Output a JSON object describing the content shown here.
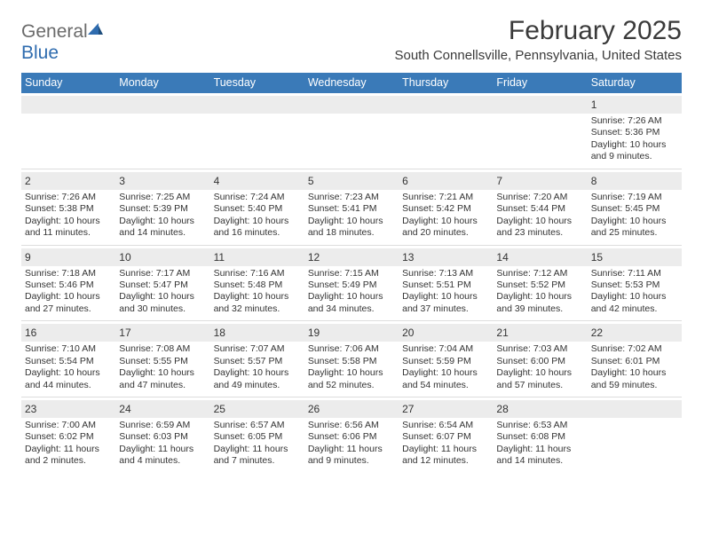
{
  "logo": {
    "word1": "General",
    "word2": "Blue"
  },
  "title": "February 2025",
  "location": "South Connellsville, Pennsylvania, United States",
  "colors": {
    "header_bg": "#3a7ab8",
    "header_text": "#ffffff",
    "daynum_bg": "#ececec",
    "divider": "#dddddd",
    "logo_gray": "#6a6a6a",
    "logo_blue": "#2f6caf"
  },
  "weekdays": [
    "Sunday",
    "Monday",
    "Tuesday",
    "Wednesday",
    "Thursday",
    "Friday",
    "Saturday"
  ],
  "weeks": [
    [
      {
        "blank": true
      },
      {
        "blank": true
      },
      {
        "blank": true
      },
      {
        "blank": true
      },
      {
        "blank": true
      },
      {
        "blank": true
      },
      {
        "n": "1",
        "sunrise": "Sunrise: 7:26 AM",
        "sunset": "Sunset: 5:36 PM",
        "daylight1": "Daylight: 10 hours",
        "daylight2": "and 9 minutes."
      }
    ],
    [
      {
        "n": "2",
        "sunrise": "Sunrise: 7:26 AM",
        "sunset": "Sunset: 5:38 PM",
        "daylight1": "Daylight: 10 hours",
        "daylight2": "and 11 minutes."
      },
      {
        "n": "3",
        "sunrise": "Sunrise: 7:25 AM",
        "sunset": "Sunset: 5:39 PM",
        "daylight1": "Daylight: 10 hours",
        "daylight2": "and 14 minutes."
      },
      {
        "n": "4",
        "sunrise": "Sunrise: 7:24 AM",
        "sunset": "Sunset: 5:40 PM",
        "daylight1": "Daylight: 10 hours",
        "daylight2": "and 16 minutes."
      },
      {
        "n": "5",
        "sunrise": "Sunrise: 7:23 AM",
        "sunset": "Sunset: 5:41 PM",
        "daylight1": "Daylight: 10 hours",
        "daylight2": "and 18 minutes."
      },
      {
        "n": "6",
        "sunrise": "Sunrise: 7:21 AM",
        "sunset": "Sunset: 5:42 PM",
        "daylight1": "Daylight: 10 hours",
        "daylight2": "and 20 minutes."
      },
      {
        "n": "7",
        "sunrise": "Sunrise: 7:20 AM",
        "sunset": "Sunset: 5:44 PM",
        "daylight1": "Daylight: 10 hours",
        "daylight2": "and 23 minutes."
      },
      {
        "n": "8",
        "sunrise": "Sunrise: 7:19 AM",
        "sunset": "Sunset: 5:45 PM",
        "daylight1": "Daylight: 10 hours",
        "daylight2": "and 25 minutes."
      }
    ],
    [
      {
        "n": "9",
        "sunrise": "Sunrise: 7:18 AM",
        "sunset": "Sunset: 5:46 PM",
        "daylight1": "Daylight: 10 hours",
        "daylight2": "and 27 minutes."
      },
      {
        "n": "10",
        "sunrise": "Sunrise: 7:17 AM",
        "sunset": "Sunset: 5:47 PM",
        "daylight1": "Daylight: 10 hours",
        "daylight2": "and 30 minutes."
      },
      {
        "n": "11",
        "sunrise": "Sunrise: 7:16 AM",
        "sunset": "Sunset: 5:48 PM",
        "daylight1": "Daylight: 10 hours",
        "daylight2": "and 32 minutes."
      },
      {
        "n": "12",
        "sunrise": "Sunrise: 7:15 AM",
        "sunset": "Sunset: 5:49 PM",
        "daylight1": "Daylight: 10 hours",
        "daylight2": "and 34 minutes."
      },
      {
        "n": "13",
        "sunrise": "Sunrise: 7:13 AM",
        "sunset": "Sunset: 5:51 PM",
        "daylight1": "Daylight: 10 hours",
        "daylight2": "and 37 minutes."
      },
      {
        "n": "14",
        "sunrise": "Sunrise: 7:12 AM",
        "sunset": "Sunset: 5:52 PM",
        "daylight1": "Daylight: 10 hours",
        "daylight2": "and 39 minutes."
      },
      {
        "n": "15",
        "sunrise": "Sunrise: 7:11 AM",
        "sunset": "Sunset: 5:53 PM",
        "daylight1": "Daylight: 10 hours",
        "daylight2": "and 42 minutes."
      }
    ],
    [
      {
        "n": "16",
        "sunrise": "Sunrise: 7:10 AM",
        "sunset": "Sunset: 5:54 PM",
        "daylight1": "Daylight: 10 hours",
        "daylight2": "and 44 minutes."
      },
      {
        "n": "17",
        "sunrise": "Sunrise: 7:08 AM",
        "sunset": "Sunset: 5:55 PM",
        "daylight1": "Daylight: 10 hours",
        "daylight2": "and 47 minutes."
      },
      {
        "n": "18",
        "sunrise": "Sunrise: 7:07 AM",
        "sunset": "Sunset: 5:57 PM",
        "daylight1": "Daylight: 10 hours",
        "daylight2": "and 49 minutes."
      },
      {
        "n": "19",
        "sunrise": "Sunrise: 7:06 AM",
        "sunset": "Sunset: 5:58 PM",
        "daylight1": "Daylight: 10 hours",
        "daylight2": "and 52 minutes."
      },
      {
        "n": "20",
        "sunrise": "Sunrise: 7:04 AM",
        "sunset": "Sunset: 5:59 PM",
        "daylight1": "Daylight: 10 hours",
        "daylight2": "and 54 minutes."
      },
      {
        "n": "21",
        "sunrise": "Sunrise: 7:03 AM",
        "sunset": "Sunset: 6:00 PM",
        "daylight1": "Daylight: 10 hours",
        "daylight2": "and 57 minutes."
      },
      {
        "n": "22",
        "sunrise": "Sunrise: 7:02 AM",
        "sunset": "Sunset: 6:01 PM",
        "daylight1": "Daylight: 10 hours",
        "daylight2": "and 59 minutes."
      }
    ],
    [
      {
        "n": "23",
        "sunrise": "Sunrise: 7:00 AM",
        "sunset": "Sunset: 6:02 PM",
        "daylight1": "Daylight: 11 hours",
        "daylight2": "and 2 minutes."
      },
      {
        "n": "24",
        "sunrise": "Sunrise: 6:59 AM",
        "sunset": "Sunset: 6:03 PM",
        "daylight1": "Daylight: 11 hours",
        "daylight2": "and 4 minutes."
      },
      {
        "n": "25",
        "sunrise": "Sunrise: 6:57 AM",
        "sunset": "Sunset: 6:05 PM",
        "daylight1": "Daylight: 11 hours",
        "daylight2": "and 7 minutes."
      },
      {
        "n": "26",
        "sunrise": "Sunrise: 6:56 AM",
        "sunset": "Sunset: 6:06 PM",
        "daylight1": "Daylight: 11 hours",
        "daylight2": "and 9 minutes."
      },
      {
        "n": "27",
        "sunrise": "Sunrise: 6:54 AM",
        "sunset": "Sunset: 6:07 PM",
        "daylight1": "Daylight: 11 hours",
        "daylight2": "and 12 minutes."
      },
      {
        "n": "28",
        "sunrise": "Sunrise: 6:53 AM",
        "sunset": "Sunset: 6:08 PM",
        "daylight1": "Daylight: 11 hours",
        "daylight2": "and 14 minutes."
      },
      {
        "blank": true
      }
    ]
  ]
}
